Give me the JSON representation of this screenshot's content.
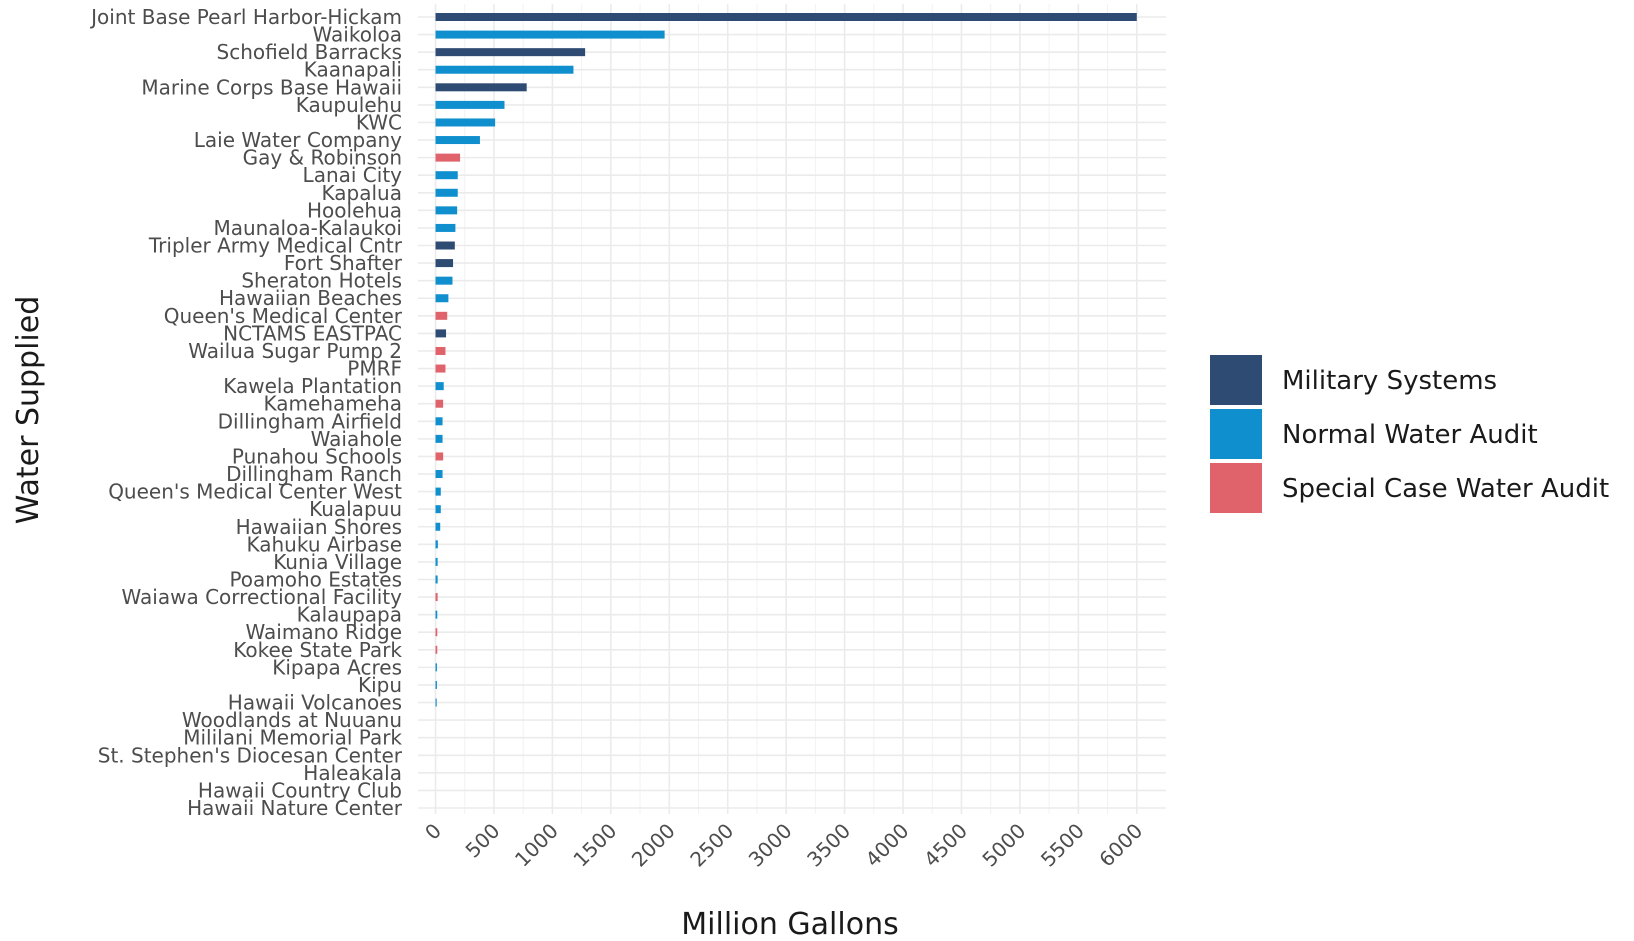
{
  "chart_data": {
    "type": "bar",
    "orientation": "horizontal",
    "title": "",
    "xlabel": "Million Gallons",
    "ylabel": "Water Supplied",
    "xlim": [
      -150,
      6250
    ],
    "xticks": [
      0,
      500,
      1000,
      1500,
      2000,
      2500,
      3000,
      3500,
      4000,
      4500,
      5000,
      5500,
      6000
    ],
    "grid": true,
    "legend_position": "right",
    "legend": [
      {
        "name": "Military Systems",
        "color": "#2e4b73"
      },
      {
        "name": "Normal Water Audit",
        "color": "#0f8fce"
      },
      {
        "name": "Special Case Water Audit",
        "color": "#e0636b"
      }
    ],
    "bars": [
      {
        "label": "Joint Base Pearl Harbor-Hickam",
        "value": 6000,
        "group": "Military Systems"
      },
      {
        "label": "Waikoloa",
        "value": 1960,
        "group": "Normal Water Audit"
      },
      {
        "label": "Schofield Barracks",
        "value": 1280,
        "group": "Military Systems"
      },
      {
        "label": "Kaanapali",
        "value": 1180,
        "group": "Normal Water Audit"
      },
      {
        "label": "Marine Corps Base Hawaii",
        "value": 780,
        "group": "Military Systems"
      },
      {
        "label": "Kaupulehu",
        "value": 590,
        "group": "Normal Water Audit"
      },
      {
        "label": "KWC",
        "value": 510,
        "group": "Normal Water Audit"
      },
      {
        "label": "Laie Water Company",
        "value": 380,
        "group": "Normal Water Audit"
      },
      {
        "label": "Gay & Robinson",
        "value": 210,
        "group": "Special Case Water Audit"
      },
      {
        "label": "Lanai City",
        "value": 190,
        "group": "Normal Water Audit"
      },
      {
        "label": "Kapalua",
        "value": 190,
        "group": "Normal Water Audit"
      },
      {
        "label": "Hoolehua",
        "value": 185,
        "group": "Normal Water Audit"
      },
      {
        "label": "Maunaloa-Kalaukoi",
        "value": 170,
        "group": "Normal Water Audit"
      },
      {
        "label": "Tripler Army Medical Cntr",
        "value": 165,
        "group": "Military Systems"
      },
      {
        "label": "Fort Shafter",
        "value": 150,
        "group": "Military Systems"
      },
      {
        "label": "Sheraton Hotels",
        "value": 145,
        "group": "Normal Water Audit"
      },
      {
        "label": "Hawaiian Beaches",
        "value": 110,
        "group": "Normal Water Audit"
      },
      {
        "label": "Queen's Medical Center",
        "value": 100,
        "group": "Special Case Water Audit"
      },
      {
        "label": "NCTAMS EASTPAC",
        "value": 90,
        "group": "Military Systems"
      },
      {
        "label": "Wailua Sugar Pump 2",
        "value": 85,
        "group": "Special Case Water Audit"
      },
      {
        "label": "PMRF",
        "value": 85,
        "group": "Special Case Water Audit"
      },
      {
        "label": "Kawela Plantation",
        "value": 70,
        "group": "Normal Water Audit"
      },
      {
        "label": "Kamehameha",
        "value": 65,
        "group": "Special Case Water Audit"
      },
      {
        "label": "Dillingham Airfield",
        "value": 60,
        "group": "Normal Water Audit"
      },
      {
        "label": "Waiahole",
        "value": 60,
        "group": "Normal Water Audit"
      },
      {
        "label": "Punahou Schools",
        "value": 65,
        "group": "Special Case Water Audit"
      },
      {
        "label": "Dillingham Ranch",
        "value": 60,
        "group": "Normal Water Audit"
      },
      {
        "label": "Queen's Medical Center West",
        "value": 45,
        "group": "Normal Water Audit"
      },
      {
        "label": "Kualapuu",
        "value": 45,
        "group": "Normal Water Audit"
      },
      {
        "label": "Hawaiian Shores",
        "value": 40,
        "group": "Normal Water Audit"
      },
      {
        "label": "Kahuku Airbase",
        "value": 20,
        "group": "Normal Water Audit"
      },
      {
        "label": "Kunia Village",
        "value": 18,
        "group": "Normal Water Audit"
      },
      {
        "label": "Poamoho Estates",
        "value": 18,
        "group": "Normal Water Audit"
      },
      {
        "label": "Waiawa Correctional Facility",
        "value": 18,
        "group": "Special Case Water Audit"
      },
      {
        "label": "Kalaupapa",
        "value": 15,
        "group": "Normal Water Audit"
      },
      {
        "label": "Waimano Ridge",
        "value": 15,
        "group": "Special Case Water Audit"
      },
      {
        "label": "Kokee State Park",
        "value": 15,
        "group": "Special Case Water Audit"
      },
      {
        "label": "Kipapa Acres",
        "value": 12,
        "group": "Normal Water Audit"
      },
      {
        "label": "Kipu",
        "value": 12,
        "group": "Normal Water Audit"
      },
      {
        "label": "Hawaii Volcanoes",
        "value": 10,
        "group": "Normal Water Audit"
      },
      {
        "label": "Woodlands at Nuuanu",
        "value": 0,
        "group": "Normal Water Audit"
      },
      {
        "label": "Mililani Memorial Park",
        "value": 0,
        "group": "Normal Water Audit"
      },
      {
        "label": "St. Stephen's Diocesan Center",
        "value": 0,
        "group": "Normal Water Audit"
      },
      {
        "label": "Haleakala",
        "value": 0,
        "group": "Normal Water Audit"
      },
      {
        "label": "Hawaii Country Club",
        "value": 0,
        "group": "Normal Water Audit"
      },
      {
        "label": "Hawaii Nature Center",
        "value": 0,
        "group": "Normal Water Audit"
      }
    ]
  }
}
